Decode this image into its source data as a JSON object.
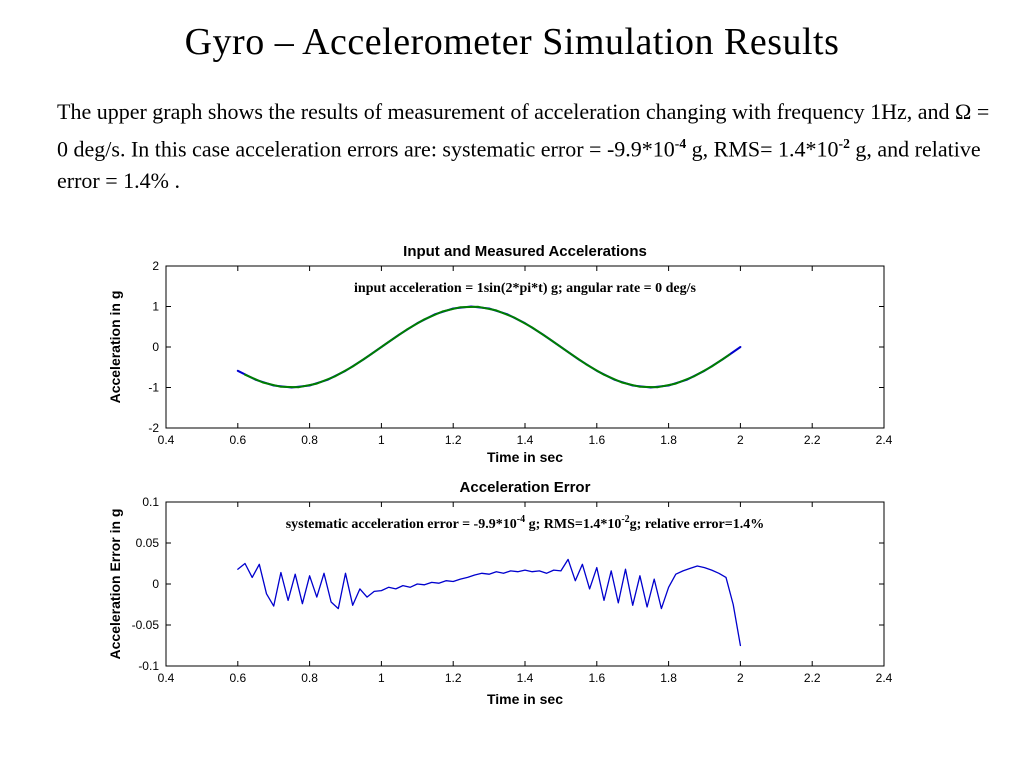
{
  "slide": {
    "title": "Gyro – Accelerometer Simulation Results"
  },
  "intro": {
    "part1": "The upper graph shows the results of  measurement of  acceleration changing with frequency 1Hz, and Ω = 0 deg/s. In this case acceleration errors are: systematic error = -9.9*10",
    "sup1": "-4",
    "part2": " g, RMS= 1.4*10",
    "sup2": "-2",
    "part3": " g, and relative error = 1.4% ."
  },
  "chart_data": [
    {
      "type": "line",
      "title": "Input and Measured Accelerations",
      "xlabel": "Time in sec",
      "ylabel": "Acceleration in g",
      "xlim": [
        0.4,
        2.4
      ],
      "ylim": [
        -2,
        2
      ],
      "xticks": [
        0.4,
        0.6,
        0.8,
        1,
        1.2,
        1.4,
        1.6,
        1.8,
        2,
        2.2,
        2.4
      ],
      "yticks": [
        -2,
        -1,
        0,
        1,
        2
      ],
      "grid": false,
      "legend": "none",
      "annotation": [
        {
          "t": "input acceleration = 1sin(2*pi*t) g; angular rate = 0 deg/s"
        }
      ],
      "series": [
        {
          "name": "input-acceleration",
          "color": "#0000cd",
          "width": 2,
          "x": [
            0.6,
            0.65,
            0.7,
            0.75,
            0.8,
            0.85,
            0.9,
            0.95,
            1,
            1.05,
            1.1,
            1.15,
            1.2,
            1.25,
            1.3,
            1.35,
            1.4,
            1.45,
            1.5,
            1.55,
            1.6,
            1.65,
            1.7,
            1.75,
            1.8,
            1.85,
            1.9,
            1.95,
            2
          ],
          "y": [
            -0.5878,
            -0.809,
            -0.9511,
            -1,
            -0.9511,
            -0.809,
            -0.5878,
            -0.309,
            0,
            0.309,
            0.5878,
            0.809,
            0.9511,
            1,
            0.9511,
            0.809,
            0.5878,
            0.309,
            0,
            -0.309,
            -0.5878,
            -0.809,
            -0.9511,
            -1,
            -0.9511,
            -0.809,
            -0.5878,
            -0.309,
            0
          ]
        },
        {
          "name": "measured-acceleration",
          "color": "#007f00",
          "width": 2,
          "x": [
            0.62,
            0.67,
            0.72,
            0.77,
            0.82,
            0.87,
            0.92,
            0.97,
            1.02,
            1.07,
            1.12,
            1.17,
            1.22,
            1.27,
            1.32,
            1.37,
            1.42,
            1.47,
            1.52,
            1.57,
            1.62,
            1.67,
            1.72,
            1.77,
            1.82,
            1.87,
            1.92,
            1.97
          ],
          "y": [
            -0.6845,
            -0.8763,
            -0.9823,
            -0.9921,
            -0.9048,
            -0.729,
            -0.4818,
            -0.1874,
            0.1253,
            0.4258,
            0.6845,
            0.8763,
            0.9823,
            0.9921,
            0.9048,
            0.729,
            0.4818,
            0.1874,
            -0.1253,
            -0.4258,
            -0.6845,
            -0.8763,
            -0.9823,
            -0.9921,
            -0.9048,
            -0.729,
            -0.4818,
            -0.1874
          ]
        }
      ]
    },
    {
      "type": "line",
      "title": "Acceleration Error",
      "xlabel": "Time in sec",
      "ylabel": "Acceleration Error in  g",
      "xlim": [
        0.4,
        2.4
      ],
      "ylim": [
        -0.1,
        0.1
      ],
      "xticks": [
        0.4,
        0.6,
        0.8,
        1,
        1.2,
        1.4,
        1.6,
        1.8,
        2,
        2.2,
        2.4
      ],
      "yticks": [
        -0.1,
        -0.05,
        0,
        0.05,
        0.1
      ],
      "grid": false,
      "legend": "none",
      "annotation": [
        {
          "t": "systematic acceleration error = -9.9*10"
        },
        {
          "t": "-4",
          "sup": true
        },
        {
          "t": " g; RMS=1.4*10"
        },
        {
          "t": "-2",
          "sup": true
        },
        {
          "t": "g; relative error=1.4%"
        }
      ],
      "series": [
        {
          "name": "acceleration-error",
          "color": "#0000cd",
          "width": 1.3,
          "x": [
            0.6,
            0.62,
            0.64,
            0.66,
            0.68,
            0.7,
            0.72,
            0.74,
            0.76,
            0.78,
            0.8,
            0.82,
            0.84,
            0.86,
            0.88,
            0.9,
            0.92,
            0.94,
            0.96,
            0.98,
            1,
            1.02,
            1.04,
            1.06,
            1.08,
            1.1,
            1.12,
            1.14,
            1.16,
            1.18,
            1.2,
            1.22,
            1.24,
            1.26,
            1.28,
            1.3,
            1.32,
            1.34,
            1.36,
            1.38,
            1.4,
            1.42,
            1.44,
            1.46,
            1.48,
            1.5,
            1.52,
            1.54,
            1.56,
            1.58,
            1.6,
            1.62,
            1.64,
            1.66,
            1.68,
            1.7,
            1.72,
            1.74,
            1.76,
            1.78,
            1.8,
            1.82,
            1.84,
            1.86,
            1.88,
            1.9,
            1.92,
            1.94,
            1.96,
            1.98,
            2
          ],
          "y": [
            0.018,
            0.025,
            0.008,
            0.024,
            -0.012,
            -0.027,
            0.014,
            -0.02,
            0.012,
            -0.024,
            0.01,
            -0.016,
            0.013,
            -0.022,
            -0.03,
            0.013,
            -0.026,
            -0.006,
            -0.016,
            -0.009,
            -0.008,
            -0.004,
            -0.006,
            -0.002,
            -0.004,
            0,
            -0.001,
            0.002,
            0.001,
            0.004,
            0.003,
            0.006,
            0.008,
            0.011,
            0.013,
            0.012,
            0.015,
            0.013,
            0.016,
            0.015,
            0.017,
            0.015,
            0.016,
            0.013,
            0.017,
            0.016,
            0.03,
            0.004,
            0.024,
            -0.006,
            0.02,
            -0.02,
            0.016,
            -0.023,
            0.018,
            -0.026,
            0.01,
            -0.028,
            0.006,
            -0.03,
            -0.004,
            0.012,
            0.016,
            0.019,
            0.022,
            0.02,
            0.017,
            0.013,
            0.008,
            -0.025,
            -0.075
          ]
        }
      ]
    }
  ]
}
